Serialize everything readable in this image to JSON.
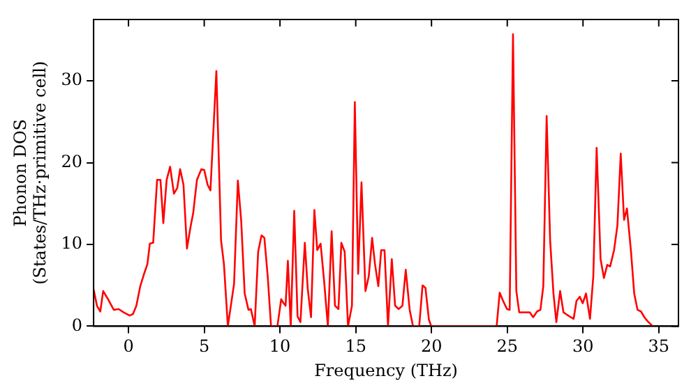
{
  "chart_data": {
    "type": "line",
    "xlabel": "Frequency (THz)",
    "ylabel": "Phonon DOS\n(States/THz·primitive cell)",
    "xlim": [
      -2.3,
      36.3
    ],
    "ylim": [
      0,
      37.5
    ],
    "xticks": [
      0,
      5,
      10,
      15,
      20,
      25,
      30,
      35
    ],
    "yticks": [
      0,
      10,
      20,
      30
    ],
    "grid": false,
    "legend": false,
    "marker": "none",
    "line_style": "solid",
    "series": [
      {
        "color": "#ff0000",
        "x": [
          -2.3,
          -2.08,
          -1.86,
          -1.67,
          -1.38,
          -0.97,
          -0.65,
          -0.33,
          0.08,
          0.3,
          0.52,
          0.78,
          1.03,
          1.25,
          1.41,
          1.63,
          1.89,
          2.11,
          2.3,
          2.52,
          2.75,
          3.0,
          3.22,
          3.41,
          3.63,
          3.86,
          4.11,
          4.27,
          4.52,
          4.81,
          5.0,
          5.22,
          5.41,
          5.8,
          6.11,
          6.3,
          6.56,
          6.97,
          7.22,
          7.44,
          7.67,
          7.92,
          8.08,
          8.33,
          8.56,
          8.78,
          8.97,
          9.19,
          9.41,
          9.83,
          10.08,
          10.24,
          10.37,
          10.52,
          10.71,
          10.94,
          11.16,
          11.35,
          11.64,
          11.83,
          12.05,
          12.27,
          12.46,
          12.68,
          12.9,
          13.16,
          13.41,
          13.63,
          13.86,
          14.05,
          14.27,
          14.49,
          14.75,
          14.94,
          15.16,
          15.38,
          15.64,
          15.86,
          16.08,
          16.27,
          16.49,
          16.68,
          16.9,
          17.13,
          17.38,
          17.6,
          17.83,
          18.08,
          18.3,
          18.56,
          18.78,
          19.19,
          19.41,
          19.6,
          19.83,
          19.98,
          24.3,
          24.5,
          24.75,
          24.98,
          25.16,
          25.38,
          25.6,
          25.79,
          26.17,
          26.49,
          26.71,
          26.97,
          27.19,
          27.38,
          27.6,
          27.83,
          28.05,
          28.24,
          28.49,
          28.71,
          28.94,
          29.19,
          29.38,
          29.57,
          29.79,
          29.98,
          30.2,
          30.46,
          30.68,
          30.9,
          31.16,
          31.38,
          31.6,
          31.79,
          32.05,
          32.27,
          32.49,
          32.71,
          32.9,
          33.16,
          33.38,
          33.6,
          33.83,
          34.05,
          34.27,
          34.6
        ],
        "values": [
          4.5,
          2.5,
          1.8,
          4.3,
          3.4,
          2.0,
          2.1,
          1.7,
          1.3,
          1.5,
          2.5,
          4.9,
          6.4,
          7.6,
          10.1,
          10.2,
          17.9,
          17.9,
          12.6,
          17.9,
          19.5,
          16.2,
          16.9,
          19.2,
          17.3,
          9.5,
          12.3,
          13.8,
          17.9,
          19.2,
          19.1,
          17.3,
          16.6,
          31.2,
          10.5,
          7.6,
          0,
          5.2,
          17.8,
          12.9,
          4.0,
          2.0,
          2.1,
          0,
          9.1,
          11.1,
          10.8,
          6.1,
          0,
          0,
          3.3,
          2.8,
          2.5,
          8.0,
          0,
          14.1,
          1.2,
          0.5,
          10.2,
          4.6,
          1.1,
          14.2,
          9.3,
          10.1,
          5.8,
          0,
          11.6,
          2.5,
          2.1,
          10.2,
          9.1,
          0,
          2.5,
          27.4,
          6.4,
          17.6,
          4.3,
          6.1,
          10.8,
          7.6,
          4.9,
          9.3,
          9.3,
          0,
          8.2,
          2.5,
          2.1,
          2.5,
          6.9,
          2.0,
          0,
          0,
          5.0,
          4.7,
          0.8,
          0,
          0,
          4.1,
          3.0,
          2.1,
          2.0,
          35.7,
          4.3,
          1.7,
          1.7,
          1.7,
          1.1,
          1.8,
          2.0,
          4.9,
          25.7,
          10.5,
          4.0,
          0.5,
          4.3,
          1.7,
          1.4,
          1.1,
          0.9,
          3.1,
          3.6,
          2.8,
          4.0,
          0.9,
          6.1,
          21.8,
          8.2,
          5.9,
          7.5,
          7.3,
          9.3,
          12.3,
          21.1,
          13.0,
          14.4,
          9.3,
          4.0,
          2.0,
          1.8,
          1.1,
          0.6,
          0
        ]
      }
    ]
  }
}
